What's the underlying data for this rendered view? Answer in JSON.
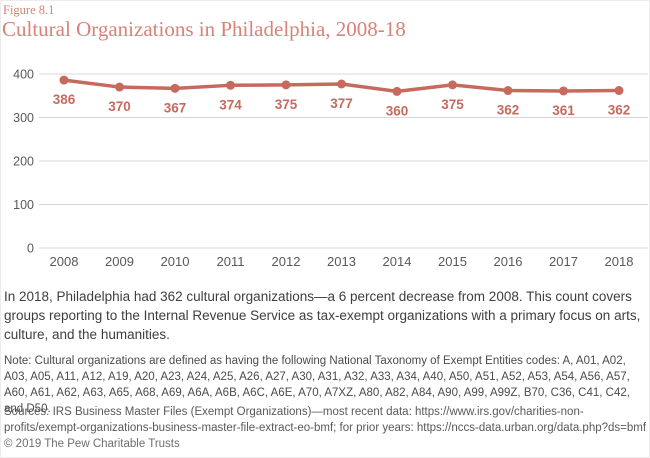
{
  "header": {
    "figure_label": "Figure 8.1",
    "title": "Cultural Organizations in Philadelphia, 2008-18"
  },
  "chart_data": {
    "type": "line",
    "title": "Cultural Organizations in Philadelphia, 2008-18",
    "categories": [
      "2008",
      "2009",
      "2010",
      "2011",
      "2012",
      "2013",
      "2014",
      "2015",
      "2016",
      "2017",
      "2018"
    ],
    "values": [
      386,
      370,
      367,
      374,
      375,
      377,
      360,
      375,
      362,
      361,
      362
    ],
    "xlabel": "",
    "ylabel": "",
    "ylim": [
      0,
      400
    ],
    "yticks": [
      0,
      100,
      200,
      300,
      400
    ],
    "grid": true,
    "legend_position": "none",
    "data_labels_visible": true,
    "line_color": "#c76a5e",
    "marker_color": "#c76a5e",
    "data_label_color": "#c76a5e",
    "grid_color": "#d8d8d8",
    "axis_text_color": "#58595b"
  },
  "summary": "In 2018, Philadelphia had 362 cultural organizations—a 6 percent decrease from 2008. This count covers groups reporting to the Internal Revenue Service as tax-exempt organizations with a primary focus on arts, culture, and the humanities.",
  "note": "Note: Cultural organizations are defined as having the following National Taxonomy of Exempt Entities codes: A, A01, A02, A03, A05, A11, A12, A19, A20, A23, A24, A25, A26, A27, A30, A31, A32, A33, A34, A40, A50, A51, A52, A53, A54, A56, A57, A60, A61, A62, A63, A65, A68, A69, A6A, A6B, A6C, A6E, A70, A7XZ, A80, A82, A84, A90, A99, A99Z, B70, C36, C41, C42, and D50.",
  "sources": "Sources: IRS Business Master Files (Exempt Organizations)—most recent data: https://www.irs.gov/charities-non-profits/exempt-organizations-business-master-file-extract-eo-bmf; for prior years: https://nccs-data.urban.org/data.php?ds=bmf",
  "copyright": "© 2019 The Pew Charitable Trusts",
  "colors": {
    "accent_title": "#d98277",
    "line": "#c76a5e",
    "grid": "#d8d8d8",
    "axis_text": "#58595b",
    "body_text": "#3e3e3e",
    "fine_text": "#4b4b4b"
  }
}
